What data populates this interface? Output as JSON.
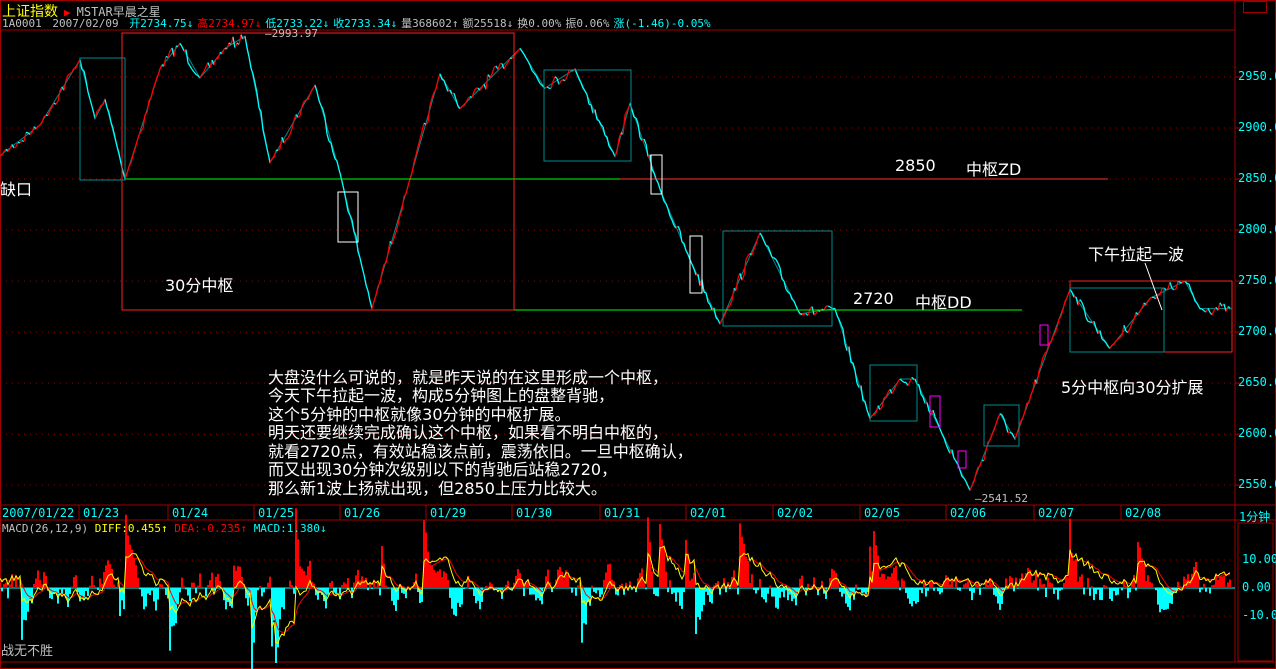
{
  "header": {
    "index_name": "上证指数",
    "source": "MSTAR早晨之星",
    "code": "1A0001",
    "date": "2007/02/09",
    "open": "开2734.75↓",
    "high": "高2734.97↓",
    "low": "低2733.22↓",
    "close": "收2733.34↓",
    "volume": "量368602↑",
    "amount": "额25518↓",
    "turnover": "换0.00%",
    "amplitude": "振0.06%",
    "change": "涨(-1.46)-0.05%"
  },
  "chart_data": {
    "type": "line",
    "title": "",
    "y_ticks": [
      "2950.0",
      "2900.0",
      "2850.0",
      "2800.0",
      "2750.0",
      "2700.0",
      "2650.0",
      "2600.0",
      "2550.0"
    ],
    "ylim": [
      2530,
      2990
    ],
    "x_ticks": [
      "2007/01/22",
      "01/23",
      "01/24",
      "01/25",
      "01/26",
      "01/29",
      "01/30",
      "01/31",
      "02/01",
      "02/02",
      "02/05",
      "02/06",
      "02/07",
      "02/08"
    ],
    "period": "1分钟",
    "high_label": "2993.97",
    "low_label": "2541.52",
    "pivot_prices": [
      2873,
      2903,
      2967,
      2909,
      2928,
      2850,
      2958,
      2983,
      2949,
      2978,
      2990,
      2866,
      2942,
      2856,
      2723,
      2850,
      2953,
      2919,
      2978,
      2939,
      2958,
      2872,
      2924,
      2840,
      2771,
      2708,
      2797,
      2718,
      2723,
      2615,
      2654,
      2654,
      2605,
      2545,
      2620,
      2595,
      2742,
      2684,
      2733,
      2750,
      2723,
      2723
    ],
    "levels": [
      {
        "value": 2850,
        "label": "2850",
        "name": "中枢ZD"
      },
      {
        "value": 2720,
        "label": "2720",
        "name": "中枢DD"
      }
    ],
    "colors": {
      "up": "#ff0000",
      "down": "#00ffff",
      "grid": "#a00000",
      "zd_line": "#00ff00",
      "box": "#008080"
    }
  },
  "annotations": {
    "gap": "缺口",
    "box30": "30分中枢",
    "afternoon": "下午拉起一波",
    "expand": "5分中枢向30分扩展",
    "paragraph": [
      "大盘没什么可说的，就是昨天说的在这里形成一个中枢，",
      "今天下午拉起一波，构成5分钟图上的盘整背驰，",
      "这个5分钟的中枢就像30分钟的中枢扩展。",
      "明天还要继续完成确认这个中枢，如果看不明白中枢的，",
      "就看2720点，有效站稳该点前，震荡依旧。一旦中枢确认，",
      "而又出现30分钟次级别以下的背驰后站稳2720，",
      "那么新1波上扬就出现，但2850上压力比较大。"
    ]
  },
  "macd": {
    "name": "MACD(26,12,9)",
    "diff": "DIFF:0.455↑",
    "dea": "DEA:-0.235↑",
    "macd": "MACD:1.380↓",
    "y_ticks": [
      "10.00",
      "0.00",
      "-10.00"
    ],
    "footer": "战无不胜"
  }
}
